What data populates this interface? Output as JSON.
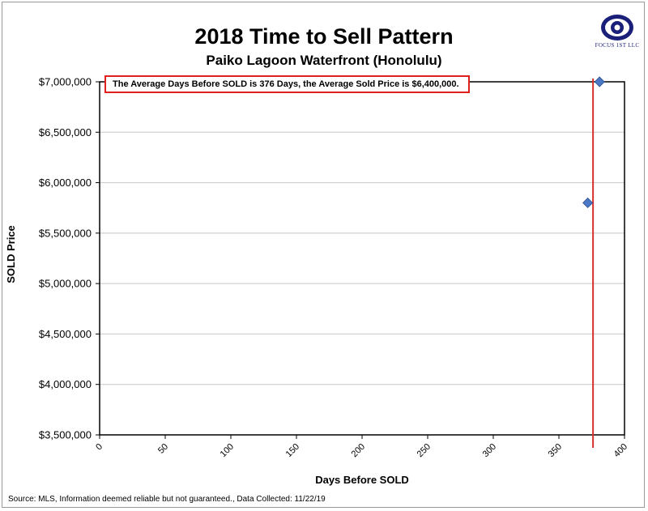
{
  "colors": {
    "point": "#4a78c4",
    "average_line": "#d9302c",
    "grid": "#c8c8c8",
    "logo": "#1a1f7a"
  },
  "logo": {
    "icon": "eye-icon",
    "text": "FOCUS 1ST LLC"
  },
  "source": "Source: MLS, Information deemed reliable but not guaranteed., Data Collected: 11/22/19",
  "chart_data": {
    "type": "scatter",
    "title": "2018 Time to Sell Pattern",
    "subtitle": "Paiko Lagoon Waterfront (Honolulu)",
    "xlabel": "Days Before SOLD",
    "ylabel": "SOLD Price",
    "xlim": [
      0,
      400
    ],
    "ylim": [
      3500000,
      7000000
    ],
    "x_ticks": [
      0,
      50,
      100,
      150,
      200,
      250,
      300,
      350,
      400
    ],
    "y_ticks": [
      3500000,
      4000000,
      4500000,
      5000000,
      5500000,
      6000000,
      6500000,
      7000000
    ],
    "y_tick_labels": [
      "$3,500,000",
      "$4,000,000",
      "$4,500,000",
      "$5,000,000",
      "$5,500,000",
      "$6,000,000",
      "$6,500,000",
      "$7,000,000"
    ],
    "grid": "horizontal",
    "series": [
      {
        "points": [
          {
            "x": 372,
            "y": 5800000
          },
          {
            "x": 381,
            "y": 7000000
          }
        ]
      }
    ],
    "average_line": {
      "x": 376
    },
    "annotation": "The Average Days Before SOLD is 376 Days, the Average Sold Price is $6,400,000."
  }
}
